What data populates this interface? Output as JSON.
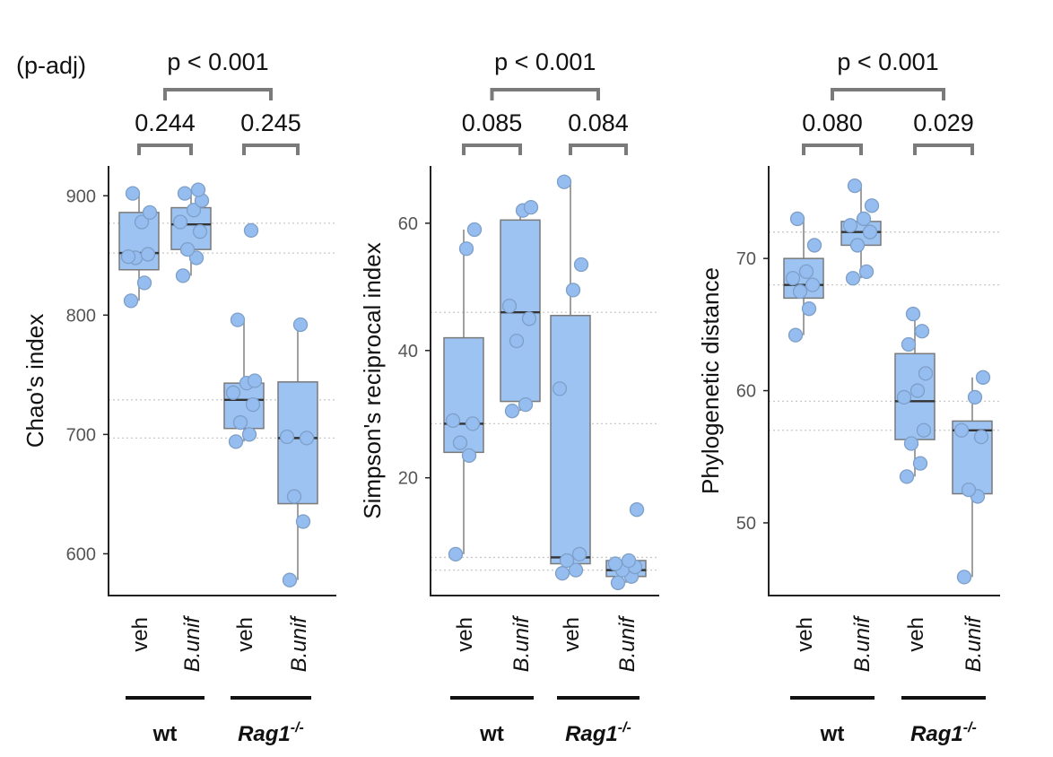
{
  "p_label": "(p-adj)",
  "chart_data": [
    {
      "type": "boxplot",
      "ylabel": "Chao's index",
      "ylim": [
        565,
        925
      ],
      "yticks": [
        600,
        700,
        800,
        900
      ],
      "groups": [
        {
          "name": "wt",
          "categories": [
            "veh",
            "B.unif"
          ]
        },
        {
          "name": "Rag1",
          "sup": "-/-",
          "categories": [
            "veh",
            "B.unif"
          ]
        }
      ],
      "boxes": [
        {
          "category": "veh",
          "group": "wt",
          "q1": 838,
          "median": 852,
          "q3": 886,
          "whisker_low": 812,
          "whisker_high": 902,
          "points": [
            812,
            827,
            848,
            851,
            849,
            878,
            886,
            902
          ]
        },
        {
          "category": "B.unif",
          "group": "wt",
          "q1": 855,
          "median": 876,
          "q3": 890,
          "whisker_low": 833,
          "whisker_high": 905,
          "points": [
            833,
            848,
            855,
            870,
            878,
            888,
            896,
            902,
            905
          ]
        },
        {
          "category": "veh",
          "group": "Rag1",
          "q1": 705,
          "median": 729,
          "q3": 743,
          "whisker_low": 694,
          "whisker_high": 796,
          "points": [
            694,
            700,
            710,
            725,
            735,
            743,
            745,
            796,
            871
          ]
        },
        {
          "category": "B.unif",
          "group": "Rag1",
          "q1": 642,
          "median": 697,
          "q3": 744,
          "whisker_low": 578,
          "whisker_high": 792,
          "points": [
            578,
            627,
            648,
            697,
            698,
            792
          ]
        }
      ],
      "within_pvalues": [
        "0.244",
        "0.245"
      ],
      "between_pvalue": "p < 0.001",
      "reference_lines": [
        877,
        852,
        729,
        697
      ]
    },
    {
      "type": "boxplot",
      "ylabel": "Simpson's reciprocal index",
      "ylim": [
        1.5,
        69
      ],
      "yticks": [
        20,
        40,
        60
      ],
      "groups": [
        {
          "name": "wt",
          "categories": [
            "veh",
            "B.unif"
          ]
        },
        {
          "name": "Rag1",
          "sup": "-/-",
          "categories": [
            "veh",
            "B.unif"
          ]
        }
      ],
      "boxes": [
        {
          "category": "veh",
          "group": "wt",
          "q1": 24,
          "median": 28.5,
          "q3": 42,
          "whisker_low": 8,
          "whisker_high": 59,
          "points": [
            8,
            23.5,
            25.5,
            28.5,
            29,
            56,
            59
          ]
        },
        {
          "category": "B.unif",
          "group": "wt",
          "q1": 32,
          "median": 46,
          "q3": 60.5,
          "whisker_low": 30.5,
          "whisker_high": 62.5,
          "points": [
            30.5,
            31.5,
            41.5,
            45,
            47,
            62,
            62.5
          ]
        },
        {
          "category": "veh",
          "group": "Rag1",
          "q1": 6.5,
          "median": 7.5,
          "q3": 45.5,
          "whisker_low": 5,
          "whisker_high": 66.5,
          "points": [
            5,
            5.5,
            7,
            8,
            34,
            49.5,
            53.5,
            66.5
          ]
        },
        {
          "category": "B.unif",
          "group": "Rag1",
          "q1": 4.5,
          "median": 5.5,
          "q3": 7,
          "whisker_low": 3.5,
          "whisker_high": 7,
          "points": [
            3.5,
            4.5,
            5.5,
            6,
            6.5,
            7,
            15
          ]
        }
      ],
      "within_pvalues": [
        "0.085",
        "0.084"
      ],
      "between_pvalue": "p < 0.001",
      "reference_lines": [
        46,
        28.5,
        7.5,
        5.5
      ]
    },
    {
      "type": "boxplot",
      "ylabel": "Phylogenetic distance",
      "ylim": [
        44.5,
        77
      ],
      "yticks": [
        50,
        60,
        70
      ],
      "groups": [
        {
          "name": "wt",
          "categories": [
            "veh",
            "B.unif"
          ]
        },
        {
          "name": "Rag1",
          "sup": "-/-",
          "categories": [
            "veh",
            "B.unif"
          ]
        }
      ],
      "boxes": [
        {
          "category": "veh",
          "group": "wt",
          "q1": 67,
          "median": 68,
          "q3": 70,
          "whisker_low": 64.2,
          "whisker_high": 73,
          "points": [
            64.2,
            66.2,
            67.5,
            68,
            68.5,
            69,
            71,
            73
          ]
        },
        {
          "category": "B.unif",
          "group": "wt",
          "q1": 71,
          "median": 72,
          "q3": 72.8,
          "whisker_low": 68.5,
          "whisker_high": 75.5,
          "points": [
            68.5,
            69,
            71,
            72,
            72.5,
            73,
            74,
            75.5
          ]
        },
        {
          "category": "veh",
          "group": "Rag1",
          "q1": 56.3,
          "median": 59.2,
          "q3": 62.8,
          "whisker_low": 53.5,
          "whisker_high": 65.8,
          "points": [
            53.5,
            54.5,
            56,
            57,
            59.5,
            60,
            61.3,
            63.5,
            64.5,
            65.8
          ]
        },
        {
          "category": "B.unif",
          "group": "Rag1",
          "q1": 52.2,
          "median": 57,
          "q3": 57.7,
          "whisker_low": 45.9,
          "whisker_high": 61,
          "points": [
            45.9,
            52,
            52.5,
            56.5,
            57,
            59.5,
            61
          ]
        }
      ],
      "within_pvalues": [
        "0.080",
        "0.029"
      ],
      "between_pvalue": "p < 0.001",
      "reference_lines": [
        72,
        68,
        59.2,
        57
      ]
    }
  ]
}
